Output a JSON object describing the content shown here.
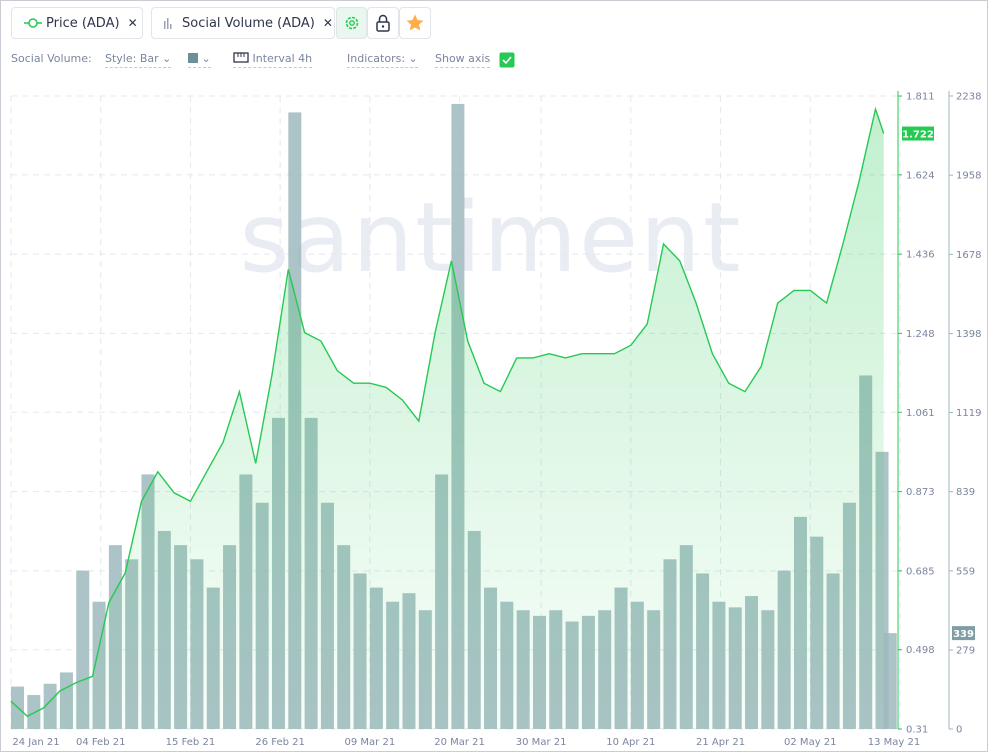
{
  "toolbar": {
    "tab_price": "Price (ADA)",
    "tab_volume": "Social Volume (ADA)",
    "metric": "Social Volume:",
    "style": "Style: Bar",
    "interval": "Interval 4h",
    "indicators": "Indicators:",
    "show_axis": "Show axis"
  },
  "chart_data": {
    "type": "combo",
    "watermark": "santiment",
    "grid": true,
    "xlim": [
      "2021-01-24",
      "2021-05-13"
    ],
    "xticks": [
      {
        "value": "2021-01-24",
        "label": "24 Jan 21"
      },
      {
        "value": "2021-02-04",
        "label": "04 Feb 21"
      },
      {
        "value": "2021-02-15",
        "label": "15 Feb 21"
      },
      {
        "value": "2021-02-26",
        "label": "26 Feb 21"
      },
      {
        "value": "2021-03-09",
        "label": "09 Mar 21"
      },
      {
        "value": "2021-03-20",
        "label": "20 Mar 21"
      },
      {
        "value": "2021-03-30",
        "label": "30 Mar 21"
      },
      {
        "value": "2021-04-10",
        "label": "10 Apr 21"
      },
      {
        "value": "2021-04-21",
        "label": "21 Apr 21"
      },
      {
        "value": "2021-05-02",
        "label": "02 May 21"
      },
      {
        "value": "2021-05-13",
        "label": "13 May 21"
      }
    ],
    "ylim": [
      0.31,
      1.811
    ],
    "yticks": [
      0.31,
      0.498,
      0.685,
      0.873,
      1.061,
      1.248,
      1.436,
      1.624,
      1.811
    ],
    "y2lim": [
      0,
      2238
    ],
    "y2ticks": [
      0,
      279,
      559,
      839,
      1119,
      1398,
      1678,
      1958,
      2238
    ],
    "x": [
      "2021-01-24",
      "2021-01-26",
      "2021-01-28",
      "2021-01-30",
      "2021-02-01",
      "2021-02-03",
      "2021-02-05",
      "2021-02-07",
      "2021-02-09",
      "2021-02-11",
      "2021-02-13",
      "2021-02-15",
      "2021-02-17",
      "2021-02-19",
      "2021-02-21",
      "2021-02-23",
      "2021-02-25",
      "2021-02-27",
      "2021-03-01",
      "2021-03-03",
      "2021-03-05",
      "2021-03-07",
      "2021-03-09",
      "2021-03-11",
      "2021-03-13",
      "2021-03-15",
      "2021-03-17",
      "2021-03-19",
      "2021-03-21",
      "2021-03-23",
      "2021-03-25",
      "2021-03-27",
      "2021-03-29",
      "2021-03-31",
      "2021-04-02",
      "2021-04-04",
      "2021-04-06",
      "2021-04-08",
      "2021-04-10",
      "2021-04-12",
      "2021-04-14",
      "2021-04-16",
      "2021-04-18",
      "2021-04-20",
      "2021-04-22",
      "2021-04-24",
      "2021-04-26",
      "2021-04-28",
      "2021-04-30",
      "2021-05-02",
      "2021-05-04",
      "2021-05-06",
      "2021-05-08",
      "2021-05-10",
      "2021-05-11"
    ],
    "series": [
      {
        "name": "Social Volume (ADA)",
        "type": "bar",
        "axis": "y2",
        "color": "#9db8bd",
        "values": [
          150,
          120,
          160,
          200,
          560,
          450,
          650,
          600,
          900,
          700,
          650,
          600,
          500,
          650,
          900,
          800,
          1100,
          2180,
          1100,
          800,
          650,
          550,
          500,
          450,
          480,
          420,
          900,
          2210,
          700,
          500,
          450,
          420,
          400,
          420,
          380,
          400,
          420,
          500,
          450,
          420,
          600,
          650,
          550,
          450,
          430,
          470,
          420,
          560,
          750,
          680,
          550,
          800,
          1250,
          980,
          339
        ]
      },
      {
        "name": "Price (ADA)",
        "type": "line",
        "color": "#26c953",
        "values": [
          0.376,
          0.34,
          0.36,
          0.4,
          0.42,
          0.435,
          0.61,
          0.68,
          0.85,
          0.92,
          0.87,
          0.85,
          0.92,
          0.99,
          1.11,
          0.94,
          1.15,
          1.4,
          1.25,
          1.23,
          1.16,
          1.13,
          1.13,
          1.12,
          1.09,
          1.04,
          1.25,
          1.42,
          1.23,
          1.13,
          1.11,
          1.19,
          1.19,
          1.2,
          1.19,
          1.2,
          1.2,
          1.2,
          1.22,
          1.27,
          1.46,
          1.42,
          1.32,
          1.2,
          1.13,
          1.11,
          1.17,
          1.32,
          1.35,
          1.35,
          1.32,
          1.46,
          1.61,
          1.78,
          1.722
        ]
      }
    ]
  }
}
